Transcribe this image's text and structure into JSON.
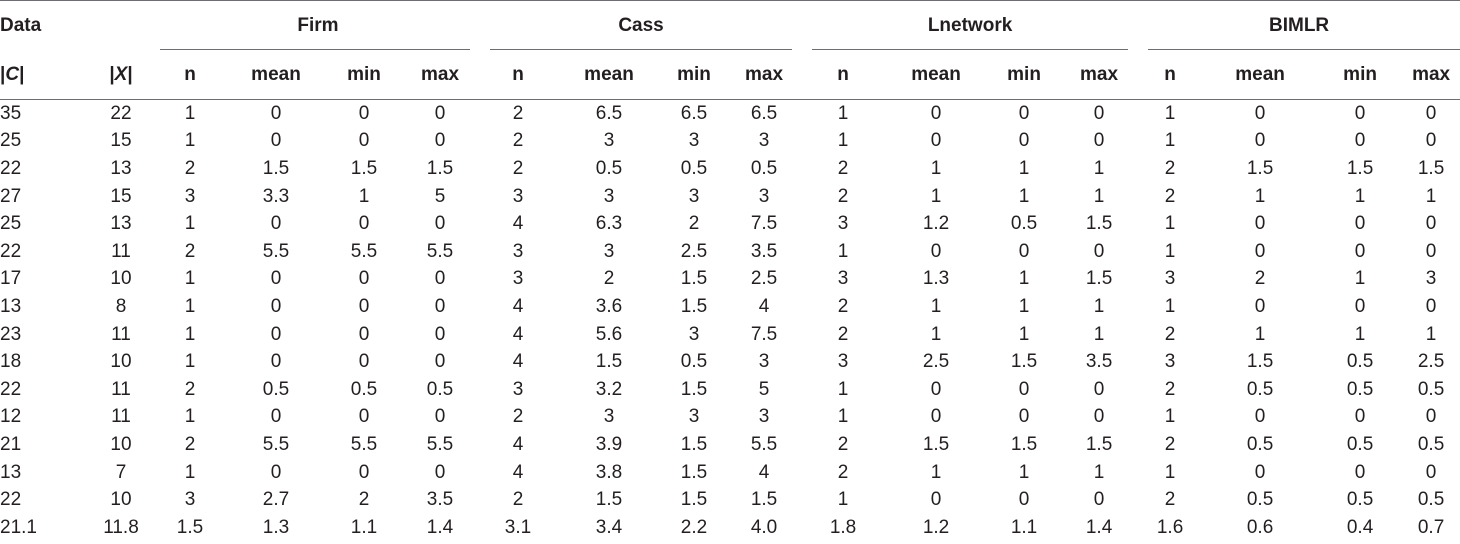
{
  "header": {
    "data_label": "Data",
    "groups": [
      "Firm",
      "Cass",
      "Lnetwork",
      "BIMLR"
    ],
    "col_c": "|C|",
    "col_x": "|X|",
    "sub": [
      "n",
      "mean",
      "min",
      "max"
    ]
  },
  "rows": [
    [
      "35",
      "22",
      "1",
      "0",
      "0",
      "0",
      "2",
      "6.5",
      "6.5",
      "6.5",
      "1",
      "0",
      "0",
      "0",
      "1",
      "0",
      "0",
      "0"
    ],
    [
      "25",
      "15",
      "1",
      "0",
      "0",
      "0",
      "2",
      "3",
      "3",
      "3",
      "1",
      "0",
      "0",
      "0",
      "1",
      "0",
      "0",
      "0"
    ],
    [
      "22",
      "13",
      "2",
      "1.5",
      "1.5",
      "1.5",
      "2",
      "0.5",
      "0.5",
      "0.5",
      "2",
      "1",
      "1",
      "1",
      "2",
      "1.5",
      "1.5",
      "1.5"
    ],
    [
      "27",
      "15",
      "3",
      "3.3",
      "1",
      "5",
      "3",
      "3",
      "3",
      "3",
      "2",
      "1",
      "1",
      "1",
      "2",
      "1",
      "1",
      "1"
    ],
    [
      "25",
      "13",
      "1",
      "0",
      "0",
      "0",
      "4",
      "6.3",
      "2",
      "7.5",
      "3",
      "1.2",
      "0.5",
      "1.5",
      "1",
      "0",
      "0",
      "0"
    ],
    [
      "22",
      "11",
      "2",
      "5.5",
      "5.5",
      "5.5",
      "3",
      "3",
      "2.5",
      "3.5",
      "1",
      "0",
      "0",
      "0",
      "1",
      "0",
      "0",
      "0"
    ],
    [
      "17",
      "10",
      "1",
      "0",
      "0",
      "0",
      "3",
      "2",
      "1.5",
      "2.5",
      "3",
      "1.3",
      "1",
      "1.5",
      "3",
      "2",
      "1",
      "3"
    ],
    [
      "13",
      "8",
      "1",
      "0",
      "0",
      "0",
      "4",
      "3.6",
      "1.5",
      "4",
      "2",
      "1",
      "1",
      "1",
      "1",
      "0",
      "0",
      "0"
    ],
    [
      "23",
      "11",
      "1",
      "0",
      "0",
      "0",
      "4",
      "5.6",
      "3",
      "7.5",
      "2",
      "1",
      "1",
      "1",
      "2",
      "1",
      "1",
      "1"
    ],
    [
      "18",
      "10",
      "1",
      "0",
      "0",
      "0",
      "4",
      "1.5",
      "0.5",
      "3",
      "3",
      "2.5",
      "1.5",
      "3.5",
      "3",
      "1.5",
      "0.5",
      "2.5"
    ],
    [
      "22",
      "11",
      "2",
      "0.5",
      "0.5",
      "0.5",
      "3",
      "3.2",
      "1.5",
      "5",
      "1",
      "0",
      "0",
      "0",
      "2",
      "0.5",
      "0.5",
      "0.5"
    ],
    [
      "12",
      "11",
      "1",
      "0",
      "0",
      "0",
      "2",
      "3",
      "3",
      "3",
      "1",
      "0",
      "0",
      "0",
      "1",
      "0",
      "0",
      "0"
    ],
    [
      "21",
      "10",
      "2",
      "5.5",
      "5.5",
      "5.5",
      "4",
      "3.9",
      "1.5",
      "5.5",
      "2",
      "1.5",
      "1.5",
      "1.5",
      "2",
      "0.5",
      "0.5",
      "0.5"
    ],
    [
      "13",
      "7",
      "1",
      "0",
      "0",
      "0",
      "4",
      "3.8",
      "1.5",
      "4",
      "2",
      "1",
      "1",
      "1",
      "1",
      "0",
      "0",
      "0"
    ],
    [
      "22",
      "10",
      "3",
      "2.7",
      "2",
      "3.5",
      "2",
      "1.5",
      "1.5",
      "1.5",
      "1",
      "0",
      "0",
      "0",
      "2",
      "0.5",
      "0.5",
      "0.5"
    ],
    [
      "21.1",
      "11.8",
      "1.5",
      "1.3",
      "1.1",
      "1.4",
      "3.1",
      "3.4",
      "2.2",
      "4.0",
      "1.8",
      "1.2",
      "1.1",
      "1.4",
      "1.6",
      "0.6",
      "0.4",
      "0.7"
    ]
  ]
}
